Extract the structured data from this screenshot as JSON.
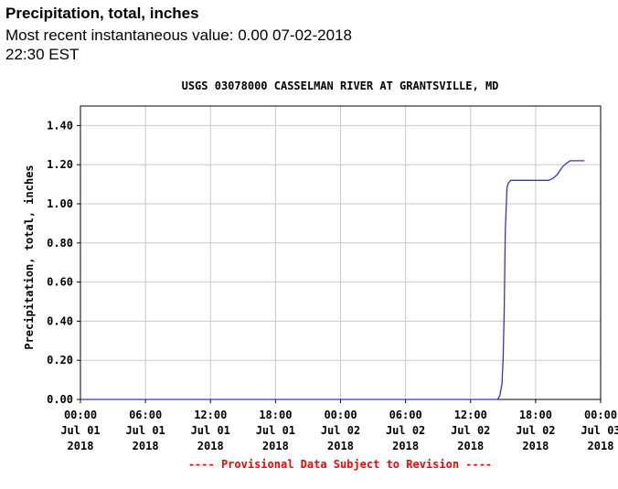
{
  "header": {
    "title": "Precipitation, total, inches",
    "recent_value": "Most recent instantaneous value: 0.00 07-02-2018   22:30 EST"
  },
  "chart_data": {
    "type": "line",
    "title": "USGS 03078000 CASSELMAN RIVER AT GRANTSVILLE, MD",
    "xlabel": "",
    "ylabel": "Precipitation, total, inches",
    "ylim": [
      0,
      1.5
    ],
    "y_ticks": [
      "0.00",
      "0.20",
      "0.40",
      "0.60",
      "0.80",
      "1.00",
      "1.20",
      "1.40"
    ],
    "y_tick_values": [
      0,
      0.2,
      0.4,
      0.6,
      0.8,
      1.0,
      1.2,
      1.4
    ],
    "x_unit": "hours since Jul 01 2018 00:00",
    "xlim": [
      0,
      48
    ],
    "x_ticks": [
      {
        "value": 0,
        "time": "00:00",
        "date": "Jul 01",
        "year": "2018"
      },
      {
        "value": 6,
        "time": "06:00",
        "date": "Jul 01",
        "year": "2018"
      },
      {
        "value": 12,
        "time": "12:00",
        "date": "Jul 01",
        "year": "2018"
      },
      {
        "value": 18,
        "time": "18:00",
        "date": "Jul 01",
        "year": "2018"
      },
      {
        "value": 24,
        "time": "00:00",
        "date": "Jul 02",
        "year": "2018"
      },
      {
        "value": 30,
        "time": "06:00",
        "date": "Jul 02",
        "year": "2018"
      },
      {
        "value": 36,
        "time": "12:00",
        "date": "Jul 02",
        "year": "2018"
      },
      {
        "value": 42,
        "time": "18:00",
        "date": "Jul 02",
        "year": "2018"
      },
      {
        "value": 48,
        "time": "00:00",
        "date": "Jul 03",
        "year": "2018"
      }
    ],
    "grid": true,
    "series": [
      {
        "name": "Precipitation, total",
        "color": "#3333cc",
        "x": [
          0,
          38.5,
          38.7,
          38.9,
          39.0,
          39.1,
          39.2,
          39.3,
          39.35,
          39.45,
          39.55,
          39.7,
          39.9,
          40.5,
          41.5,
          42.5,
          43.2,
          43.6,
          44.0,
          44.5,
          44.9,
          45.2,
          46.5
        ],
        "values": [
          0,
          0,
          0.02,
          0.08,
          0.2,
          0.44,
          0.86,
          1.0,
          1.08,
          1.1,
          1.11,
          1.12,
          1.12,
          1.12,
          1.12,
          1.12,
          1.12,
          1.13,
          1.15,
          1.19,
          1.21,
          1.22,
          1.22
        ]
      }
    ],
    "footer": "---- Provisional Data Subject to Revision ----",
    "colors": {
      "plot_border": "#000000",
      "grid": "#c8c8c8",
      "line": "#3333cc",
      "footer": "#ff0000"
    }
  }
}
